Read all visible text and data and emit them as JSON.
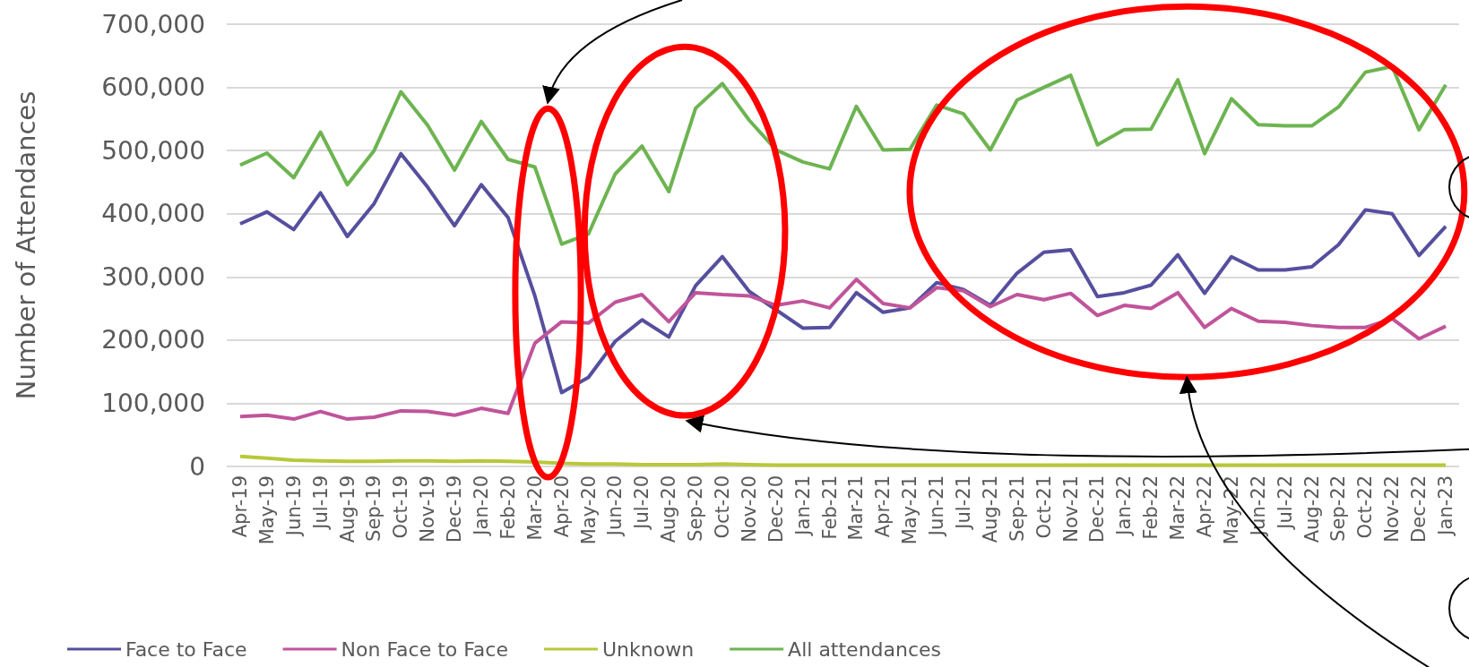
{
  "chart_data": {
    "type": "line",
    "ylabel": "Number of Attendances",
    "categories": [
      "Apr-19",
      "May-19",
      "Jun-19",
      "Jul-19",
      "Aug-19",
      "Sep-19",
      "Oct-19",
      "Nov-19",
      "Dec-19",
      "Jan-20",
      "Feb-20",
      "Mar-20",
      "Apr-20",
      "May-20",
      "Jun-20",
      "Jul-20",
      "Aug-20",
      "Sep-20",
      "Oct-20",
      "Nov-20",
      "Dec-20",
      "Jan-21",
      "Feb-21",
      "Mar-21",
      "Apr-21",
      "May-21",
      "Jun-21",
      "Jul-21",
      "Aug-21",
      "Sep-21",
      "Oct-21",
      "Nov-21",
      "Dec-21",
      "Jan-22",
      "Feb-22",
      "Mar-22",
      "Apr-22",
      "May-22",
      "Jun-22",
      "Jul-22",
      "Aug-22",
      "Sep-22",
      "Oct-22",
      "Nov-22",
      "Dec-22",
      "Jan-23"
    ],
    "series": [
      {
        "name": "Face to Face",
        "color": "#564f9e",
        "values": [
          384000,
          403000,
          375000,
          433000,
          364000,
          416000,
          495000,
          442000,
          381000,
          446000,
          394000,
          270000,
          117000,
          141000,
          198000,
          232000,
          205000,
          286000,
          332000,
          277000,
          248000,
          219000,
          220000,
          275000,
          244000,
          251000,
          291000,
          280000,
          255000,
          306000,
          339000,
          343000,
          269000,
          275000,
          287000,
          335000,
          274000,
          332000,
          311000,
          311000,
          316000,
          351000,
          406000,
          400000,
          334000,
          380000
        ]
      },
      {
        "name": "Non Face to Face",
        "color": "#c0549a",
        "values": [
          79000,
          81000,
          75000,
          87000,
          75000,
          78000,
          88000,
          87000,
          81000,
          92000,
          84000,
          195000,
          229000,
          227000,
          260000,
          272000,
          229000,
          275000,
          272000,
          270000,
          255000,
          262000,
          251000,
          296000,
          258000,
          251000,
          283000,
          278000,
          253000,
          272000,
          264000,
          274000,
          239000,
          255000,
          250000,
          275000,
          220000,
          250000,
          230000,
          228000,
          223000,
          220000,
          220000,
          234000,
          202000,
          222000
        ]
      },
      {
        "name": "Unknown",
        "color": "#b8c83a",
        "values": [
          16000,
          13000,
          10000,
          9000,
          8000,
          8000,
          9000,
          9000,
          8000,
          9000,
          8000,
          7000,
          5000,
          4000,
          4000,
          3000,
          3000,
          3000,
          4000,
          3000,
          2000,
          2000,
          2000,
          2000,
          2000,
          2000,
          2000,
          2000,
          2000,
          2000,
          2000,
          2000,
          2000,
          2000,
          2000,
          2000,
          2000,
          2000,
          2000,
          2000,
          2000,
          2000,
          2000,
          2000,
          2000,
          2000
        ]
      },
      {
        "name": "All attendances",
        "color": "#6db451",
        "values": [
          477000,
          496000,
          457000,
          529000,
          446000,
          500000,
          593000,
          540000,
          469000,
          546000,
          486000,
          474000,
          352000,
          368000,
          463000,
          507000,
          435000,
          567000,
          606000,
          548000,
          501000,
          482000,
          471000,
          570000,
          501000,
          502000,
          572000,
          558000,
          501000,
          580000,
          600000,
          619000,
          509000,
          533000,
          534000,
          612000,
          495000,
          582000,
          541000,
          539000,
          539000,
          569000,
          624000,
          633000,
          533000,
          604000
        ]
      }
    ],
    "ylim": [
      0,
      700000
    ],
    "yticks": [
      0,
      {
        "value": 100000,
        "label": "100,000"
      },
      {
        "value": 200000,
        "label": "200,000"
      },
      {
        "value": 300000,
        "label": "300,000"
      },
      {
        "value": 400000,
        "label": "400,000"
      },
      {
        "value": 500000,
        "label": "500,000"
      },
      {
        "value": 600000,
        "label": "600,000"
      },
      {
        "value": 700000,
        "label": "700,000"
      }
    ],
    "grid": "y",
    "legend": "bottom",
    "marker": "none"
  }
}
